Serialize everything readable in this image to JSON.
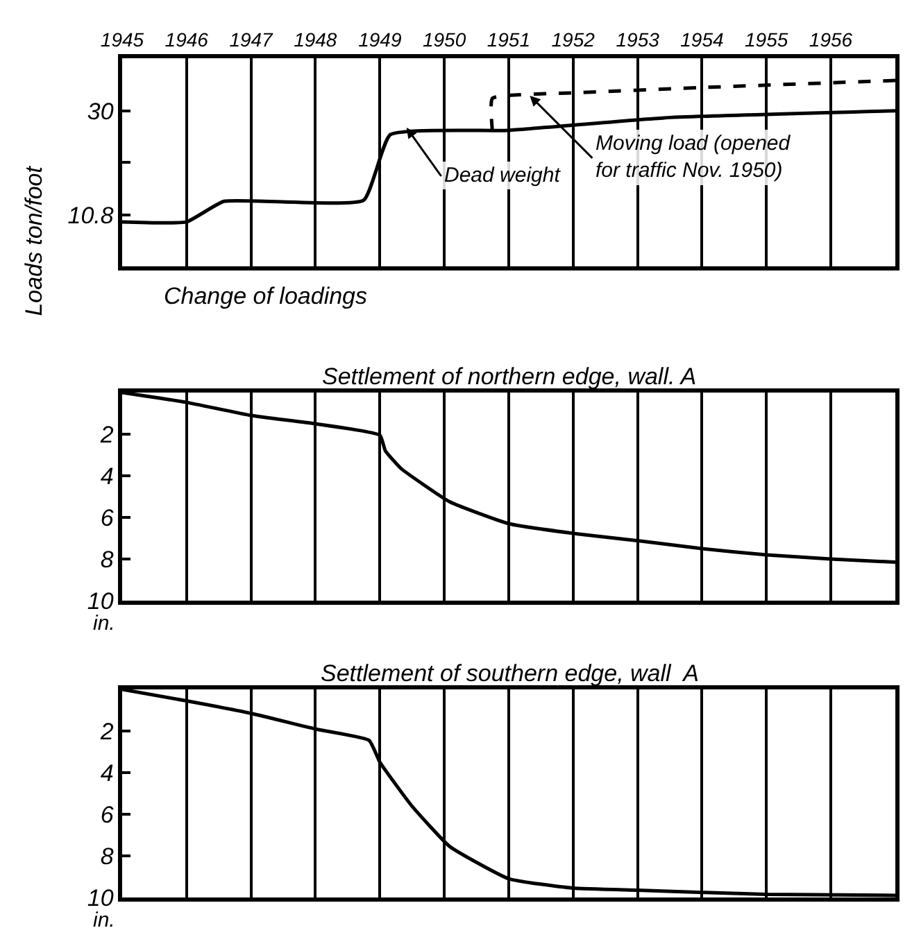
{
  "chart_data": [
    {
      "type": "line",
      "ylabel": "Loads ton/foot",
      "xlabel": "Change of loadings",
      "xlim": [
        "1945",
        "1957"
      ],
      "xticks": [
        {
          "value": "1945",
          "label": "1945"
        },
        {
          "value": "1946",
          "label": "1946"
        },
        {
          "value": "1947",
          "label": "1947"
        },
        {
          "value": "1948",
          "label": "1948"
        },
        {
          "value": "1949",
          "label": "1949"
        },
        {
          "value": "1950",
          "label": "1950"
        },
        {
          "value": "1951",
          "label": "1951"
        },
        {
          "value": "1952",
          "label": "1952"
        },
        {
          "value": "1953",
          "label": "1953"
        },
        {
          "value": "1954",
          "label": "1954"
        },
        {
          "value": "1955",
          "label": "1955"
        },
        {
          "value": "1956",
          "label": "1956"
        }
      ],
      "ylim": [
        1.3,
        39.7
      ],
      "yticks": [
        {
          "value": 10.8,
          "label": "10.8"
        },
        {
          "value": 20.5,
          "label": null
        },
        30
      ],
      "grid": "x",
      "series": [
        {
          "color": "#000000",
          "line_style": "solid",
          "x": [
            "1945-01",
            "1946-01",
            "1946-08",
            "1948-10",
            "1949-03",
            "1951-01",
            "1953-06",
            "1957-01"
          ],
          "values": [
            9.5,
            9.5,
            13.3,
            13.5,
            25.6,
            26.4,
            28.7,
            30.0
          ]
        },
        {
          "color": "#000000",
          "line_style": "dashed",
          "x": [
            "1950-10",
            "1950-10",
            "1952-01",
            "1954-01",
            "1957-01"
          ],
          "values": [
            26.2,
            32.3,
            33.3,
            34.3,
            35.6
          ]
        }
      ],
      "annotations": [
        {
          "text": "Dead weight",
          "x": "1949-06",
          "y": 26.9
        },
        {
          "text": "Moving load (opened\nfor traffic Nov. 1950)",
          "x": "1951-05",
          "y": 32.8
        }
      ]
    },
    {
      "type": "line",
      "title": "Settlement of northern edge, wall. A",
      "ylabel": "in.",
      "xlim": [
        "1945",
        "1957"
      ],
      "xticks": [
        {
          "value": "1945",
          "label": null
        },
        {
          "value": "1946",
          "label": null
        },
        {
          "value": "1947",
          "label": null
        },
        {
          "value": "1948",
          "label": null
        },
        {
          "value": "1949",
          "label": null
        },
        {
          "value": "1950",
          "label": null
        },
        {
          "value": "1951",
          "label": null
        },
        {
          "value": "1952",
          "label": null
        },
        {
          "value": "1953",
          "label": null
        },
        {
          "value": "1954",
          "label": null
        },
        {
          "value": "1955",
          "label": null
        },
        {
          "value": "1956",
          "label": null
        }
      ],
      "ylim": [
        10,
        0
      ],
      "yticks": [
        2,
        4,
        6,
        8,
        10
      ],
      "grid": "x",
      "tick_labels": "y",
      "series": [
        {
          "color": "#000000",
          "line_style": "solid",
          "x": [
            "1945-01",
            "1946-01",
            "1947-01",
            "1948-01",
            "1949-01",
            "1949-02",
            "1949-05",
            "1950-02",
            "1951-01",
            "1952-02",
            "1953-02",
            "1954-01",
            "1955-01",
            "1956-01",
            "1957-01"
          ],
          "values": [
            0,
            0.47,
            1.1,
            1.5,
            2.05,
            2.8,
            3.65,
            5.25,
            6.3,
            6.8,
            7.15,
            7.5,
            7.8,
            8.0,
            8.15
          ]
        }
      ]
    },
    {
      "type": "line",
      "title": "Settlement of southern edge, wall  A",
      "ylabel": "in.",
      "xlim": [
        "1945",
        "1957"
      ],
      "xticks": [
        {
          "value": "1945",
          "label": null
        },
        {
          "value": "1946",
          "label": null
        },
        {
          "value": "1947",
          "label": null
        },
        {
          "value": "1948",
          "label": null
        },
        {
          "value": "1949",
          "label": null
        },
        {
          "value": "1950",
          "label": null
        },
        {
          "value": "1951",
          "label": null
        },
        {
          "value": "1952",
          "label": null
        },
        {
          "value": "1953",
          "label": null
        },
        {
          "value": "1954",
          "label": null
        },
        {
          "value": "1955",
          "label": null
        },
        {
          "value": "1956",
          "label": null
        }
      ],
      "ylim": [
        10,
        0
      ],
      "yticks": [
        2,
        4,
        6,
        8,
        10
      ],
      "grid": "x",
      "tick_labels": "y",
      "series": [
        {
          "color": "#000000",
          "line_style": "solid",
          "x": [
            "1945-01",
            "1946-01",
            "1947-01",
            "1948-01",
            "1948-11",
            "1949-01",
            "1949-07",
            "1950-02",
            "1951-01",
            "1952-01",
            "1953-01",
            "1955-01",
            "1957-01"
          ],
          "values": [
            0,
            0.55,
            1.15,
            1.9,
            2.45,
            3.5,
            5.6,
            7.55,
            9.1,
            9.55,
            9.65,
            9.85,
            9.9
          ]
        }
      ]
    }
  ]
}
